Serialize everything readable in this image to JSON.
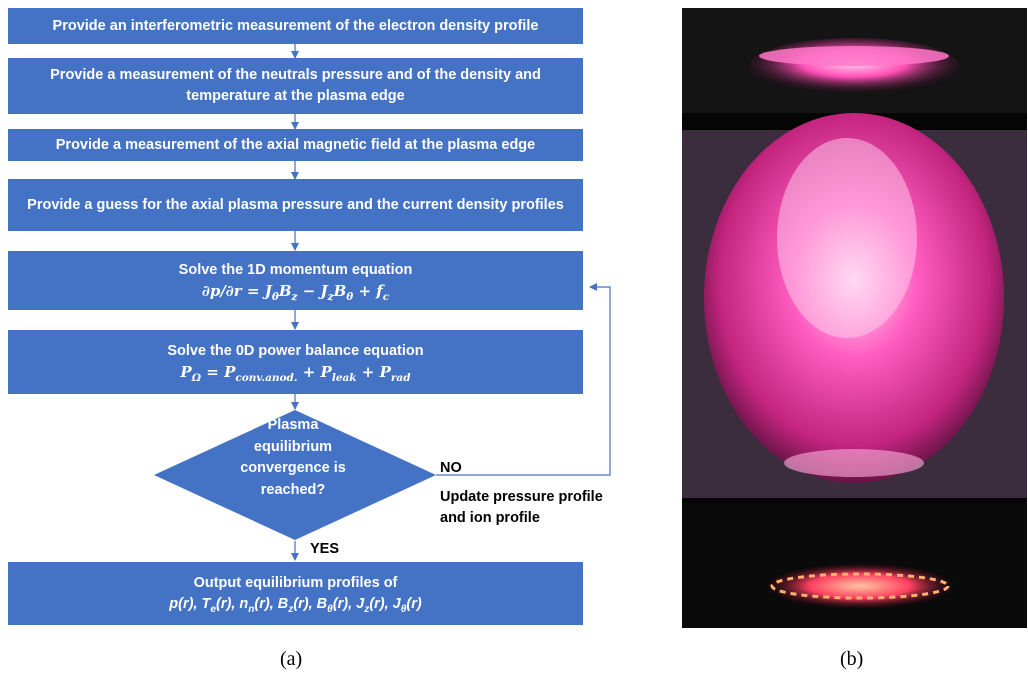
{
  "panel_a": {
    "steps": [
      {
        "text": "Provide an interferometric measurement of the electron density profile"
      },
      {
        "text": "Provide a measurement of the neutrals pressure and of the density and temperature at the plasma edge"
      },
      {
        "text": "Provide a measurement of the axial magnetic field at the plasma edge"
      },
      {
        "text": "Provide a guess for the axial plasma pressure and the current density profiles"
      },
      {
        "text": "Solve  the 1D momentum equation"
      },
      {
        "text": "Solve  the  0D power balance equation"
      }
    ],
    "decision": {
      "line1": "Plasma",
      "line2": "equilibrium",
      "line3": "convergence is",
      "line4": "reached?"
    },
    "no_label": "NO",
    "update_label_line1": "Update pressure profile",
    "update_label_line2": "and ion profile",
    "yes_label": "YES",
    "output": {
      "title": "Output equilibrium profiles  of"
    },
    "caption": "(a)"
  },
  "panel_b": {
    "caption": "(b)"
  },
  "colors": {
    "box_fill": "#4472C4",
    "arrow": "#4472C4",
    "plasma": "#ff3fa8"
  }
}
